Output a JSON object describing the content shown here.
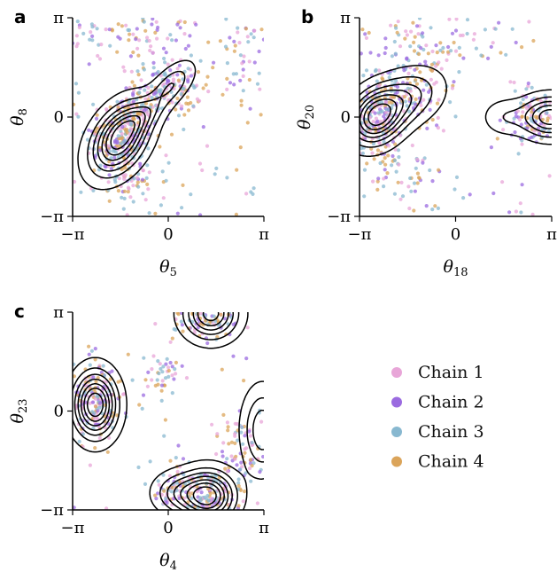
{
  "legend": [
    {
      "label": "Chain 1",
      "color": "#e8a6d8"
    },
    {
      "label": "Chain 2",
      "color": "#9b6be0"
    },
    {
      "label": "Chain 3",
      "color": "#88b8d0"
    },
    {
      "label": "Chain 4",
      "color": "#dba45a"
    }
  ],
  "chart_data": [
    {
      "type": "scatter",
      "panel": "a",
      "xlabel": {
        "base": "θ",
        "sub": "5"
      },
      "ylabel": {
        "base": "θ",
        "sub": "8"
      },
      "xlim": [
        -3.1416,
        3.1416
      ],
      "ylim": [
        -3.1416,
        3.1416
      ],
      "x_ticks": [
        {
          "value": -3.1416,
          "label": "−π"
        },
        {
          "value": 0,
          "label": "0"
        },
        {
          "value": 3.1416,
          "label": "π"
        }
      ],
      "y_ticks": [
        {
          "value": -3.1416,
          "label": "−π"
        },
        {
          "value": 0,
          "label": "0"
        },
        {
          "value": 3.1416,
          "label": "π"
        }
      ],
      "density_modes": [
        {
          "x": -1.6,
          "y": -0.7,
          "sx": 0.6,
          "sy": 0.7,
          "rho": 0.4,
          "weight": 1.0
        },
        {
          "x": 0.1,
          "y": 1.0,
          "sx": 0.45,
          "sy": 0.45,
          "rho": 0.6,
          "weight": 0.35
        },
        {
          "x": -0.9,
          "y": 0.0,
          "sx": 0.5,
          "sy": 0.4,
          "rho": 0.6,
          "weight": 0.3
        }
      ],
      "scatter_clusters": [
        {
          "x": -1.6,
          "y": -0.7,
          "sx": 0.55,
          "sy": 0.7,
          "n": 240
        },
        {
          "x": 0.0,
          "y": 0.9,
          "sx": 0.55,
          "sy": 0.45,
          "n": 150
        },
        {
          "x": -1.0,
          "y": -0.1,
          "sx": 0.4,
          "sy": 0.4,
          "n": 80
        },
        {
          "x": -0.8,
          "y": 2.6,
          "sx": 1.6,
          "sy": 0.4,
          "n": 90
        },
        {
          "x": -1.2,
          "y": -2.0,
          "sx": 0.35,
          "sy": 0.35,
          "n": 50
        },
        {
          "x": 2.5,
          "y": 1.8,
          "sx": 0.5,
          "sy": 0.9,
          "n": 50
        }
      ],
      "scatter_uniform": 60
    },
    {
      "type": "scatter",
      "panel": "b",
      "xlabel": {
        "base": "θ",
        "sub": "18"
      },
      "ylabel": {
        "base": "θ",
        "sub": "20"
      },
      "xlim": [
        -3.1416,
        3.1416
      ],
      "ylim": [
        -3.1416,
        3.1416
      ],
      "x_ticks": [
        {
          "value": -3.1416,
          "label": "−π"
        },
        {
          "value": 0,
          "label": "0"
        },
        {
          "value": 3.1416,
          "label": "π"
        }
      ],
      "y_ticks": [
        {
          "value": -3.1416,
          "label": "−π"
        },
        {
          "value": 0,
          "label": "0"
        },
        {
          "value": 3.1416,
          "label": "π"
        }
      ],
      "density_modes": [
        {
          "x": -2.6,
          "y": 0.0,
          "sx": 0.55,
          "sy": 0.55,
          "rho": 0.2,
          "weight": 1.0
        },
        {
          "x": -1.6,
          "y": 0.6,
          "sx": 0.7,
          "sy": 0.55,
          "rho": 0.3,
          "weight": 0.45
        },
        {
          "x": 3.1,
          "y": 0.0,
          "sx": 0.6,
          "sy": 0.4,
          "rho": 0.0,
          "weight": 0.8
        },
        {
          "x": 1.6,
          "y": 0.0,
          "sx": 0.45,
          "sy": 0.35,
          "rho": 0.0,
          "weight": 0.2
        }
      ],
      "scatter_clusters": [
        {
          "x": -2.6,
          "y": 0.0,
          "sx": 0.5,
          "sy": 0.6,
          "n": 200
        },
        {
          "x": -1.5,
          "y": 0.9,
          "sx": 0.7,
          "sy": 0.7,
          "n": 140
        },
        {
          "x": 2.7,
          "y": 0.0,
          "sx": 0.5,
          "sy": 0.45,
          "n": 130
        },
        {
          "x": -1.0,
          "y": 2.3,
          "sx": 1.2,
          "sy": 0.6,
          "n": 80
        },
        {
          "x": -1.8,
          "y": -1.7,
          "sx": 0.7,
          "sy": 0.6,
          "n": 60
        }
      ],
      "scatter_uniform": 70
    },
    {
      "type": "scatter",
      "panel": "c",
      "xlabel": {
        "base": "θ",
        "sub": "4"
      },
      "ylabel": {
        "base": "θ",
        "sub": "23"
      },
      "xlim": [
        -3.1416,
        3.1416
      ],
      "ylim": [
        -3.1416,
        3.1416
      ],
      "x_ticks": [
        {
          "value": -3.1416,
          "label": "−π"
        },
        {
          "value": 0,
          "label": "0"
        },
        {
          "value": 3.1416,
          "label": "π"
        }
      ],
      "y_ticks": [
        {
          "value": -3.1416,
          "label": "−π"
        },
        {
          "value": 0,
          "label": "0"
        },
        {
          "value": 3.1416,
          "label": "π"
        }
      ],
      "density_modes": [
        {
          "x": -2.4,
          "y": 0.2,
          "sx": 0.45,
          "sy": 0.65,
          "rho": 0.0,
          "weight": 1.0
        },
        {
          "x": 1.3,
          "y": -2.7,
          "sx": 0.55,
          "sy": 0.5,
          "rho": 0.0,
          "weight": 0.95
        },
        {
          "x": 1.4,
          "y": 3.1,
          "sx": 0.55,
          "sy": 0.5,
          "rho": 0.0,
          "weight": 0.8
        },
        {
          "x": 3.1,
          "y": -0.6,
          "sx": 0.4,
          "sy": 0.8,
          "rho": 0.0,
          "weight": 0.45
        },
        {
          "x": 0.3,
          "y": -2.6,
          "sx": 0.5,
          "sy": 0.4,
          "rho": 0.0,
          "weight": 0.35
        }
      ],
      "scatter_clusters": [
        {
          "x": -2.4,
          "y": 0.2,
          "sx": 0.4,
          "sy": 0.65,
          "n": 180
        },
        {
          "x": 1.3,
          "y": -2.6,
          "sx": 0.6,
          "sy": 0.45,
          "n": 160
        },
        {
          "x": 1.3,
          "y": 2.9,
          "sx": 0.55,
          "sy": 0.4,
          "n": 100
        },
        {
          "x": 2.5,
          "y": -1.2,
          "sx": 0.5,
          "sy": 0.6,
          "n": 80
        },
        {
          "x": -0.2,
          "y": 1.2,
          "sx": 0.4,
          "sy": 0.4,
          "n": 40
        },
        {
          "x": 0.1,
          "y": -2.4,
          "sx": 0.4,
          "sy": 0.4,
          "n": 60
        }
      ],
      "scatter_uniform": 30
    }
  ]
}
